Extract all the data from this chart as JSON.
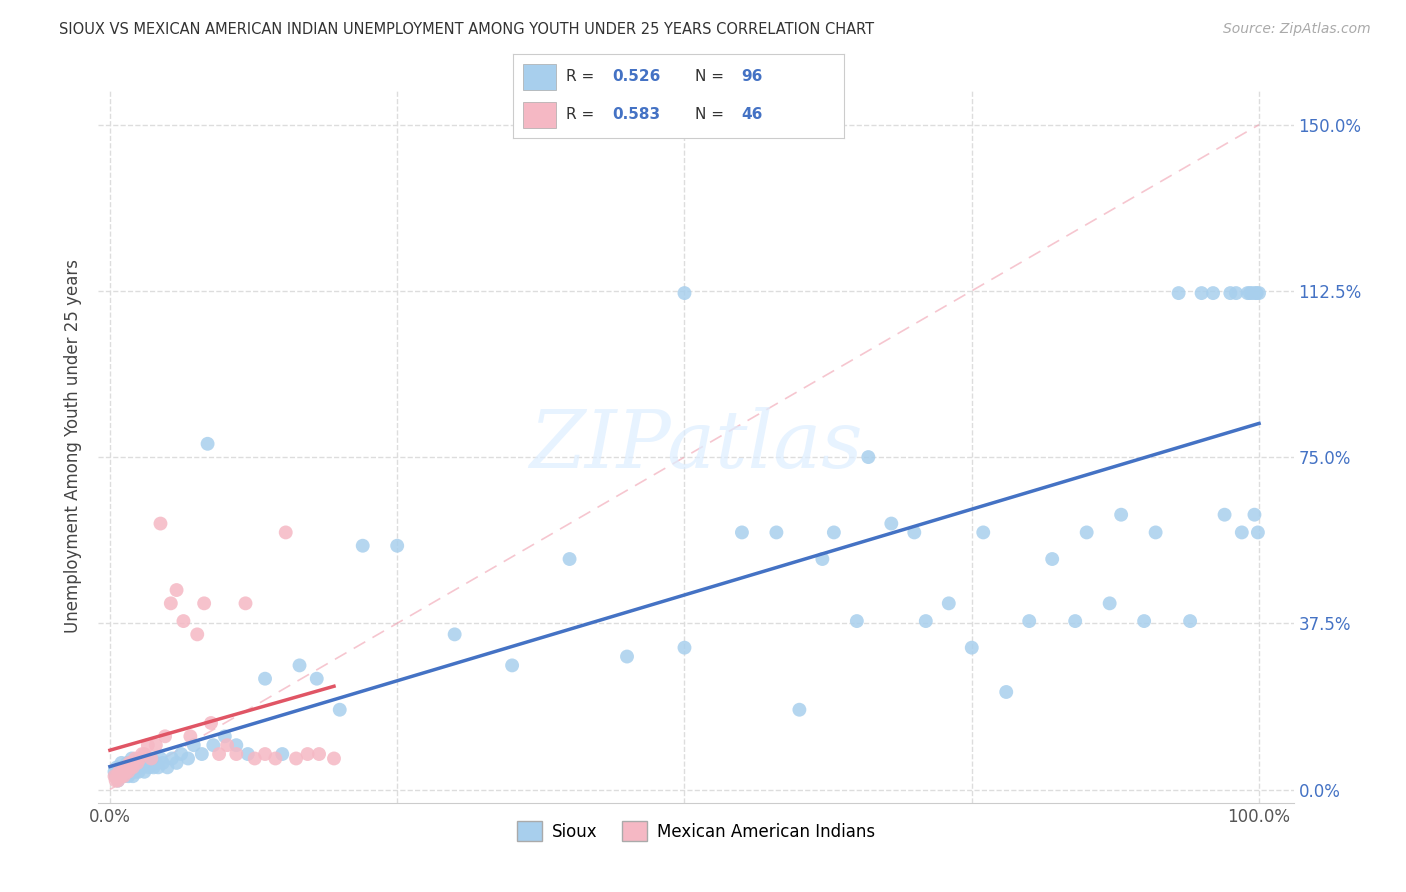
{
  "title": "SIOUX VS MEXICAN AMERICAN INDIAN UNEMPLOYMENT AMONG YOUTH UNDER 25 YEARS CORRELATION CHART",
  "source": "Source: ZipAtlas.com",
  "ylabel": "Unemployment Among Youth under 25 years",
  "xlim": [
    -0.01,
    1.03
  ],
  "ylim": [
    -0.03,
    1.58
  ],
  "xticks": [
    0.0,
    0.25,
    0.5,
    0.75,
    1.0
  ],
  "xtick_labels": [
    "0.0%",
    "",
    "",
    "",
    "100.0%"
  ],
  "yticks": [
    0.0,
    0.375,
    0.75,
    1.125,
    1.5
  ],
  "ytick_labels": [
    "0.0%",
    "37.5%",
    "75.0%",
    "112.5%",
    "150.0%"
  ],
  "sioux_color": "#A8CFED",
  "mexican_color": "#F5B8C4",
  "sioux_line_color": "#4472C4",
  "mexican_line_color": "#E05565",
  "diagonal_color": "#CCCCCC",
  "R_sioux": "0.526",
  "N_sioux": "96",
  "R_mexican": "0.583",
  "N_mexican": "46",
  "watermark": "ZIPatlas",
  "sioux_x": [
    0.004,
    0.005,
    0.006,
    0.007,
    0.008,
    0.009,
    0.01,
    0.011,
    0.012,
    0.013,
    0.014,
    0.015,
    0.016,
    0.017,
    0.018,
    0.019,
    0.02,
    0.021,
    0.022,
    0.023,
    0.024,
    0.025,
    0.026,
    0.028,
    0.03,
    0.032,
    0.034,
    0.036,
    0.038,
    0.04,
    0.042,
    0.044,
    0.046,
    0.05,
    0.054,
    0.058,
    0.062,
    0.068,
    0.073,
    0.08,
    0.085,
    0.09,
    0.1,
    0.11,
    0.12,
    0.135,
    0.15,
    0.165,
    0.18,
    0.2,
    0.22,
    0.25,
    0.3,
    0.35,
    0.4,
    0.45,
    0.5,
    0.5,
    0.55,
    0.58,
    0.6,
    0.62,
    0.63,
    0.65,
    0.66,
    0.68,
    0.7,
    0.71,
    0.73,
    0.75,
    0.76,
    0.78,
    0.8,
    0.82,
    0.84,
    0.85,
    0.87,
    0.88,
    0.9,
    0.91,
    0.93,
    0.94,
    0.95,
    0.96,
    0.97,
    0.975,
    0.98,
    0.985,
    0.99,
    0.992,
    0.994,
    0.996,
    0.997,
    0.998,
    0.999,
    1.0
  ],
  "sioux_y": [
    0.04,
    0.03,
    0.05,
    0.02,
    0.04,
    0.03,
    0.06,
    0.04,
    0.03,
    0.05,
    0.04,
    0.06,
    0.03,
    0.05,
    0.04,
    0.07,
    0.03,
    0.05,
    0.04,
    0.06,
    0.05,
    0.04,
    0.06,
    0.05,
    0.04,
    0.06,
    0.05,
    0.07,
    0.05,
    0.06,
    0.05,
    0.07,
    0.06,
    0.05,
    0.07,
    0.06,
    0.08,
    0.07,
    0.1,
    0.08,
    0.78,
    0.1,
    0.12,
    0.1,
    0.08,
    0.25,
    0.08,
    0.28,
    0.25,
    0.18,
    0.55,
    0.55,
    0.35,
    0.28,
    0.52,
    0.3,
    0.32,
    1.12,
    0.58,
    0.58,
    0.18,
    0.52,
    0.58,
    0.38,
    0.75,
    0.6,
    0.58,
    0.38,
    0.42,
    0.32,
    0.58,
    0.22,
    0.38,
    0.52,
    0.38,
    0.58,
    0.42,
    0.62,
    0.38,
    0.58,
    1.12,
    0.38,
    1.12,
    1.12,
    0.62,
    1.12,
    1.12,
    0.58,
    1.12,
    1.12,
    1.12,
    0.62,
    1.12,
    1.12,
    0.58,
    1.12
  ],
  "mexican_x": [
    0.004,
    0.005,
    0.006,
    0.007,
    0.008,
    0.009,
    0.01,
    0.011,
    0.012,
    0.013,
    0.014,
    0.015,
    0.016,
    0.017,
    0.018,
    0.019,
    0.02,
    0.022,
    0.024,
    0.026,
    0.028,
    0.03,
    0.033,
    0.036,
    0.04,
    0.044,
    0.048,
    0.053,
    0.058,
    0.064,
    0.07,
    0.076,
    0.082,
    0.088,
    0.095,
    0.102,
    0.11,
    0.118,
    0.126,
    0.135,
    0.144,
    0.153,
    0.162,
    0.172,
    0.182,
    0.195
  ],
  "mexican_y": [
    0.03,
    0.02,
    0.03,
    0.02,
    0.04,
    0.03,
    0.03,
    0.04,
    0.03,
    0.05,
    0.04,
    0.05,
    0.04,
    0.06,
    0.05,
    0.06,
    0.05,
    0.07,
    0.06,
    0.07,
    0.08,
    0.08,
    0.1,
    0.07,
    0.1,
    0.6,
    0.12,
    0.42,
    0.45,
    0.38,
    0.12,
    0.35,
    0.42,
    0.15,
    0.08,
    0.1,
    0.08,
    0.42,
    0.07,
    0.08,
    0.07,
    0.58,
    0.07,
    0.08,
    0.08,
    0.07
  ]
}
